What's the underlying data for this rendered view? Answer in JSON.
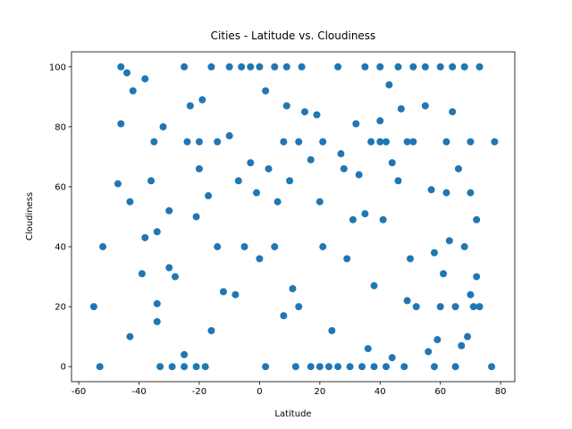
{
  "chart_data": {
    "type": "scatter",
    "title": "Cities - Latitude vs. Cloudiness",
    "x_label": "Latitude",
    "y_label": "Cloudiness",
    "color": "#1f77b4",
    "xlim": [
      -62.4,
      84.7
    ],
    "ylim": [
      -5,
      105
    ],
    "xticks": [
      -60,
      -40,
      -20,
      0,
      20,
      40,
      60,
      80
    ],
    "yticks": [
      0,
      20,
      40,
      60,
      80,
      100
    ],
    "x": [
      -53,
      -33,
      -29,
      -25,
      -21,
      -18,
      2,
      12,
      17,
      20,
      23,
      26,
      30,
      34,
      38,
      42,
      48,
      58,
      65,
      77,
      -46,
      -25,
      -16,
      -10,
      -6,
      -3,
      0,
      5,
      9,
      14,
      26,
      35,
      40,
      46,
      51,
      55,
      60,
      64,
      68,
      73,
      -35,
      -24,
      -20,
      -14,
      8,
      13,
      21,
      37,
      40,
      42,
      49,
      51,
      62,
      70,
      78,
      -55,
      -52,
      -47,
      -46,
      -44,
      -43,
      -42,
      -43,
      -38,
      -38,
      -39,
      -36,
      -34,
      -34,
      -34,
      -32,
      -30,
      -30,
      -28,
      -25,
      -23,
      -21,
      -20,
      -19,
      -17,
      -16,
      -14,
      -12,
      -10,
      -8,
      -7,
      -5,
      -3,
      -1,
      0,
      2,
      3,
      5,
      6,
      8,
      9,
      10,
      11,
      13,
      15,
      17,
      19,
      20,
      21,
      24,
      27,
      28,
      29,
      31,
      32,
      33,
      35,
      36,
      38,
      40,
      41,
      43,
      44,
      46,
      47,
      49,
      50,
      52,
      55,
      57,
      58,
      59,
      61,
      62,
      63,
      64,
      66,
      67,
      68,
      69,
      70,
      71,
      72,
      73,
      72,
      70,
      65,
      60,
      56,
      44
    ],
    "values": [
      0,
      0,
      0,
      0,
      0,
      0,
      0,
      0,
      0,
      0,
      0,
      0,
      0,
      0,
      0,
      0,
      0,
      0,
      0,
      0,
      100,
      100,
      100,
      100,
      100,
      100,
      100,
      100,
      100,
      100,
      100,
      100,
      100,
      100,
      100,
      100,
      100,
      100,
      100,
      100,
      75,
      75,
      75,
      75,
      75,
      75,
      75,
      75,
      75,
      75,
      75,
      75,
      75,
      75,
      75,
      20,
      40,
      61,
      81,
      98,
      55,
      92,
      10,
      96,
      43,
      31,
      62,
      45,
      15,
      21,
      80,
      52,
      33,
      30,
      4,
      87,
      50,
      66,
      89,
      57,
      12,
      40,
      25,
      77,
      24,
      62,
      40,
      68,
      58,
      36,
      92,
      66,
      40,
      55,
      17,
      87,
      62,
      26,
      20,
      85,
      69,
      84,
      55,
      40,
      12,
      71,
      66,
      36,
      49,
      81,
      64,
      51,
      6,
      27,
      82,
      49,
      94,
      68,
      62,
      86,
      22,
      36,
      20,
      87,
      59,
      38,
      9,
      31,
      58,
      42,
      85,
      66,
      7,
      40,
      10,
      58,
      20,
      49,
      20,
      30,
      24,
      20,
      20,
      5,
      3
    ]
  }
}
